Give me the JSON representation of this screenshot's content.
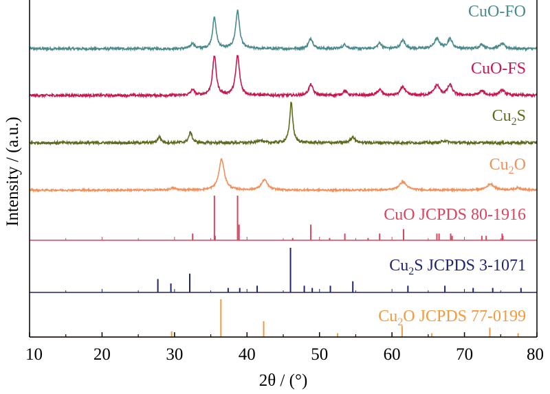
{
  "chart_data": {
    "type": "line",
    "xlabel": "2θ / (°)",
    "ylabel": "Intensity / (a.u.)",
    "xlim": [
      10,
      80
    ],
    "x_ticks": [
      10,
      20,
      30,
      40,
      50,
      60,
      70,
      80
    ],
    "grid": false,
    "traces": [
      {
        "name": "CuO-FO",
        "name_main": "CuO-FO",
        "name_sub": "",
        "name_rest": "",
        "color": "#4a8a8c",
        "baseline": 0.0,
        "noise": 0.035,
        "peaks": [
          [
            32.5,
            0.08,
            0.3
          ],
          [
            35.5,
            0.45,
            0.3
          ],
          [
            38.7,
            0.55,
            0.32
          ],
          [
            48.8,
            0.15,
            0.35
          ],
          [
            53.5,
            0.06,
            0.35
          ],
          [
            58.3,
            0.08,
            0.35
          ],
          [
            61.5,
            0.12,
            0.38
          ],
          [
            66.2,
            0.14,
            0.45
          ],
          [
            68.0,
            0.14,
            0.4
          ],
          [
            72.4,
            0.06,
            0.4
          ],
          [
            75.2,
            0.07,
            0.45
          ]
        ]
      },
      {
        "name": "CuO-FS",
        "name_main": "CuO-FS",
        "name_sub": "",
        "name_rest": "",
        "color": "#c8174d",
        "baseline": 0.0,
        "noise": 0.035,
        "peaks": [
          [
            32.5,
            0.08,
            0.3
          ],
          [
            35.5,
            0.55,
            0.3
          ],
          [
            38.7,
            0.55,
            0.32
          ],
          [
            48.8,
            0.15,
            0.35
          ],
          [
            53.5,
            0.06,
            0.35
          ],
          [
            58.3,
            0.08,
            0.35
          ],
          [
            61.5,
            0.12,
            0.38
          ],
          [
            66.2,
            0.14,
            0.45
          ],
          [
            68.0,
            0.14,
            0.4
          ],
          [
            72.4,
            0.06,
            0.4
          ],
          [
            75.2,
            0.07,
            0.45
          ]
        ]
      },
      {
        "name": "Cu2S",
        "name_main": "Cu",
        "name_sub": "2",
        "name_rest": "S",
        "color": "#5f6a1e",
        "baseline": 0.0,
        "noise": 0.035,
        "peaks": [
          [
            27.9,
            0.08,
            0.28
          ],
          [
            32.2,
            0.14,
            0.28
          ],
          [
            41.8,
            0.04,
            0.35
          ],
          [
            46.1,
            0.55,
            0.25
          ],
          [
            54.6,
            0.08,
            0.35
          ],
          [
            67.3,
            0.03,
            0.4
          ]
        ]
      },
      {
        "name": "Cu2O",
        "name_main": "Cu",
        "name_sub": "2",
        "name_rest": "O",
        "color": "#f0905a",
        "baseline": 0.0,
        "noise": 0.025,
        "peaks": [
          [
            29.8,
            0.03,
            0.45
          ],
          [
            36.5,
            0.45,
            0.45
          ],
          [
            42.4,
            0.15,
            0.5
          ],
          [
            61.5,
            0.12,
            0.6
          ],
          [
            73.6,
            0.09,
            0.6
          ],
          [
            77.4,
            0.03,
            0.6
          ]
        ]
      }
    ],
    "references": [
      {
        "name": "CuO JCPDS 80-1916",
        "name_main": "CuO JCPDS 80-1916",
        "name_sub": "",
        "name_rest": "",
        "color": "#d9445e",
        "positions": [
          32.5,
          35.5,
          35.6,
          38.7,
          38.9,
          46.3,
          48.8,
          51.4,
          53.5,
          56.7,
          58.3,
          61.6,
          66.2,
          66.5,
          68.1,
          68.3,
          72.4,
          73.0,
          75.2,
          75.3
        ],
        "heights": [
          0.15,
          1.0,
          0.1,
          1.0,
          0.35,
          0.05,
          0.35,
          0.05,
          0.15,
          0.05,
          0.15,
          0.25,
          0.15,
          0.15,
          0.15,
          0.1,
          0.1,
          0.1,
          0.15,
          0.1
        ]
      },
      {
        "name": "Cu2S JCPDS 3-1071",
        "name_main": "Cu",
        "name_sub": "2",
        "name_rest": "S JCPDS 3-1071",
        "color": "#1f2470",
        "positions": [
          27.7,
          29.5,
          32.1,
          37.4,
          39.0,
          41.4,
          46.0,
          47.9,
          49.0,
          51.5,
          54.6,
          62.2,
          67.3,
          71.2,
          73.9,
          77.8
        ],
        "heights": [
          0.3,
          0.2,
          0.42,
          0.1,
          0.1,
          0.15,
          1.0,
          0.15,
          0.1,
          0.15,
          0.25,
          0.15,
          0.15,
          0.1,
          0.1,
          0.1
        ]
      },
      {
        "name": "Cu2O JCPDS 77-0199",
        "name_main": "Cu",
        "name_sub": "2",
        "name_rest": "O JCPDS 77-0199",
        "color": "#f29a3e",
        "positions": [
          29.6,
          36.4,
          42.3,
          52.5,
          61.4,
          65.5,
          73.5,
          77.4
        ],
        "heights": [
          0.15,
          1.0,
          0.42,
          0.1,
          0.3,
          0.1,
          0.25,
          0.1
        ]
      }
    ]
  }
}
